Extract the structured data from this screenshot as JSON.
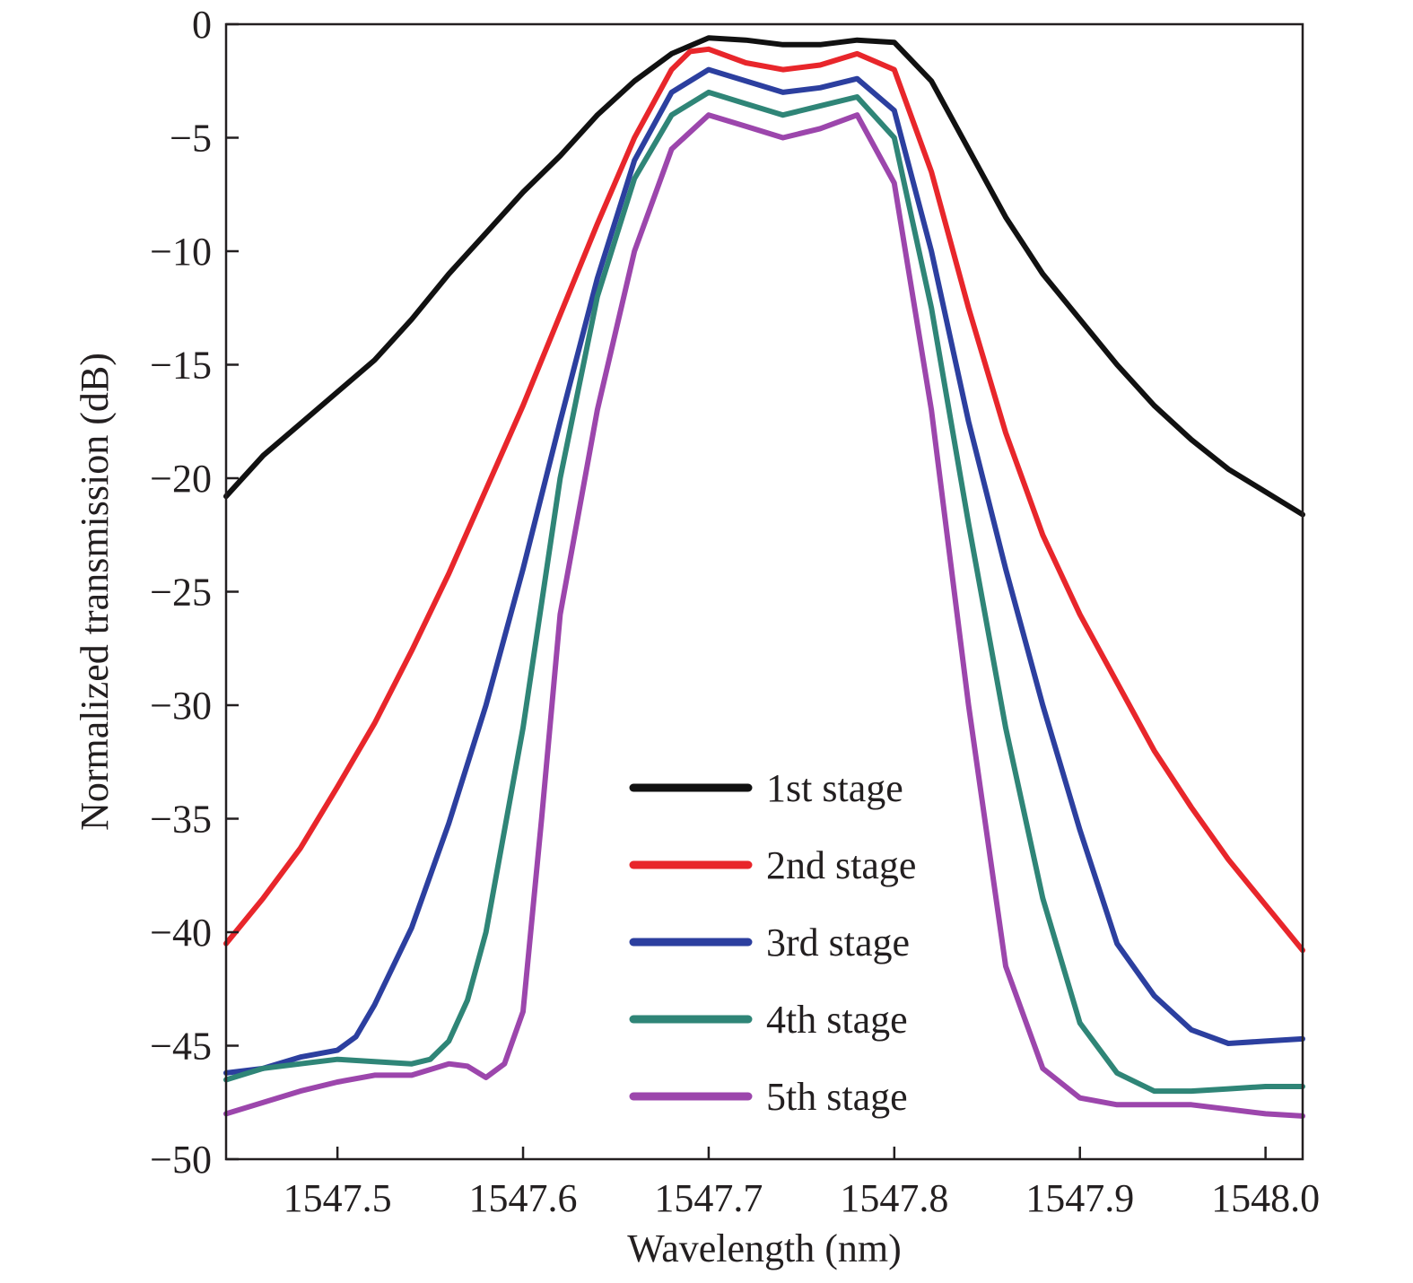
{
  "chart_data": {
    "type": "line",
    "xlabel": "Wavelength (nm)",
    "ylabel": "Normalized transmission (dB)",
    "xlim": [
      1547.44,
      1548.02
    ],
    "ylim": [
      -50,
      0
    ],
    "xticks": [
      1547.5,
      1547.6,
      1547.7,
      1547.8,
      1547.9,
      1548.0
    ],
    "xtick_labels": [
      "1547.5",
      "1547.6",
      "1547.7",
      "1547.8",
      "1547.9",
      "1548.0"
    ],
    "yticks": [
      0,
      -5,
      -10,
      -15,
      -20,
      -25,
      -30,
      -35,
      -40,
      -45,
      -50
    ],
    "ytick_labels": [
      "0",
      "−5",
      "−10",
      "−15",
      "−20",
      "−25",
      "−30",
      "−35",
      "−40",
      "−45",
      "−50"
    ],
    "grid": false,
    "legend_position": "bottom-center",
    "series": [
      {
        "name": "1st stage",
        "color": "#111111",
        "x": [
          1547.44,
          1547.46,
          1547.48,
          1547.5,
          1547.52,
          1547.54,
          1547.56,
          1547.58,
          1547.6,
          1547.62,
          1547.64,
          1547.66,
          1547.68,
          1547.7,
          1547.72,
          1547.74,
          1547.76,
          1547.78,
          1547.8,
          1547.82,
          1547.84,
          1547.86,
          1547.88,
          1547.9,
          1547.92,
          1547.94,
          1547.96,
          1547.98,
          1548.0,
          1548.02
        ],
        "y": [
          -20.8,
          -19.0,
          -17.6,
          -16.2,
          -14.8,
          -13.0,
          -11.0,
          -9.2,
          -7.4,
          -5.8,
          -4.0,
          -2.5,
          -1.3,
          -0.6,
          -0.7,
          -0.9,
          -0.9,
          -0.7,
          -0.8,
          -2.5,
          -5.5,
          -8.5,
          -11.0,
          -13.0,
          -15.0,
          -16.8,
          -18.3,
          -19.6,
          -20.6,
          -21.6
        ]
      },
      {
        "name": "2nd stage",
        "color": "#e8262b",
        "x": [
          1547.44,
          1547.46,
          1547.48,
          1547.5,
          1547.52,
          1547.54,
          1547.56,
          1547.58,
          1547.6,
          1547.62,
          1547.64,
          1547.66,
          1547.68,
          1547.69,
          1547.7,
          1547.72,
          1547.74,
          1547.76,
          1547.78,
          1547.8,
          1547.82,
          1547.84,
          1547.86,
          1547.88,
          1547.9,
          1547.92,
          1547.94,
          1547.96,
          1547.98,
          1548.0,
          1548.02
        ],
        "y": [
          -40.5,
          -38.5,
          -36.3,
          -33.6,
          -30.8,
          -27.6,
          -24.2,
          -20.5,
          -16.8,
          -12.8,
          -8.8,
          -5.0,
          -2.0,
          -1.2,
          -1.1,
          -1.7,
          -2.0,
          -1.8,
          -1.3,
          -2.0,
          -6.5,
          -12.5,
          -18.0,
          -22.5,
          -26.0,
          -29.0,
          -32.0,
          -34.5,
          -36.8,
          -38.8,
          -40.8
        ]
      },
      {
        "name": "3rd stage",
        "color": "#2c3f9f",
        "x": [
          1547.44,
          1547.46,
          1547.48,
          1547.5,
          1547.51,
          1547.52,
          1547.54,
          1547.56,
          1547.58,
          1547.6,
          1547.62,
          1547.64,
          1547.66,
          1547.68,
          1547.7,
          1547.72,
          1547.74,
          1547.76,
          1547.78,
          1547.8,
          1547.82,
          1547.84,
          1547.86,
          1547.88,
          1547.9,
          1547.92,
          1547.94,
          1547.96,
          1547.98,
          1548.0,
          1548.02
        ],
        "y": [
          -46.2,
          -46.0,
          -45.5,
          -45.2,
          -44.6,
          -43.2,
          -39.8,
          -35.2,
          -30.0,
          -24.0,
          -17.5,
          -11.2,
          -6.0,
          -3.0,
          -2.0,
          -2.5,
          -3.0,
          -2.8,
          -2.4,
          -3.8,
          -10.0,
          -17.5,
          -24.0,
          -30.0,
          -35.5,
          -40.5,
          -42.8,
          -44.3,
          -44.9,
          -44.8,
          -44.7
        ]
      },
      {
        "name": "4th stage",
        "color": "#2f8577",
        "x": [
          1547.44,
          1547.46,
          1547.48,
          1547.5,
          1547.52,
          1547.54,
          1547.55,
          1547.56,
          1547.57,
          1547.58,
          1547.6,
          1547.62,
          1547.64,
          1547.66,
          1547.68,
          1547.7,
          1547.72,
          1547.74,
          1547.76,
          1547.78,
          1547.8,
          1547.82,
          1547.84,
          1547.86,
          1547.88,
          1547.9,
          1547.92,
          1547.94,
          1547.96,
          1547.98,
          1548.0,
          1548.02
        ],
        "y": [
          -46.5,
          -46.0,
          -45.8,
          -45.6,
          -45.7,
          -45.8,
          -45.6,
          -44.8,
          -43.0,
          -40.0,
          -31.0,
          -20.0,
          -12.0,
          -6.8,
          -4.0,
          -3.0,
          -3.5,
          -4.0,
          -3.6,
          -3.2,
          -5.0,
          -12.5,
          -22.0,
          -31.0,
          -38.5,
          -44.0,
          -46.2,
          -47.0,
          -47.0,
          -46.9,
          -46.8,
          -46.8
        ]
      },
      {
        "name": "5th stage",
        "color": "#9c46ac",
        "x": [
          1547.44,
          1547.46,
          1547.48,
          1547.5,
          1547.52,
          1547.54,
          1547.56,
          1547.57,
          1547.58,
          1547.59,
          1547.6,
          1547.61,
          1547.62,
          1547.64,
          1547.66,
          1547.68,
          1547.7,
          1547.72,
          1547.74,
          1547.76,
          1547.78,
          1547.8,
          1547.82,
          1547.84,
          1547.86,
          1547.88,
          1547.9,
          1547.92,
          1547.94,
          1547.96,
          1547.98,
          1548.0,
          1548.02
        ],
        "y": [
          -48.0,
          -47.5,
          -47.0,
          -46.6,
          -46.3,
          -46.3,
          -45.8,
          -45.9,
          -46.4,
          -45.8,
          -43.5,
          -35.0,
          -26.0,
          -17.0,
          -10.0,
          -5.5,
          -4.0,
          -4.5,
          -5.0,
          -4.6,
          -4.0,
          -7.0,
          -17.0,
          -30.0,
          -41.5,
          -46.0,
          -47.3,
          -47.6,
          -47.6,
          -47.6,
          -47.8,
          -48.0,
          -48.1
        ]
      }
    ]
  }
}
